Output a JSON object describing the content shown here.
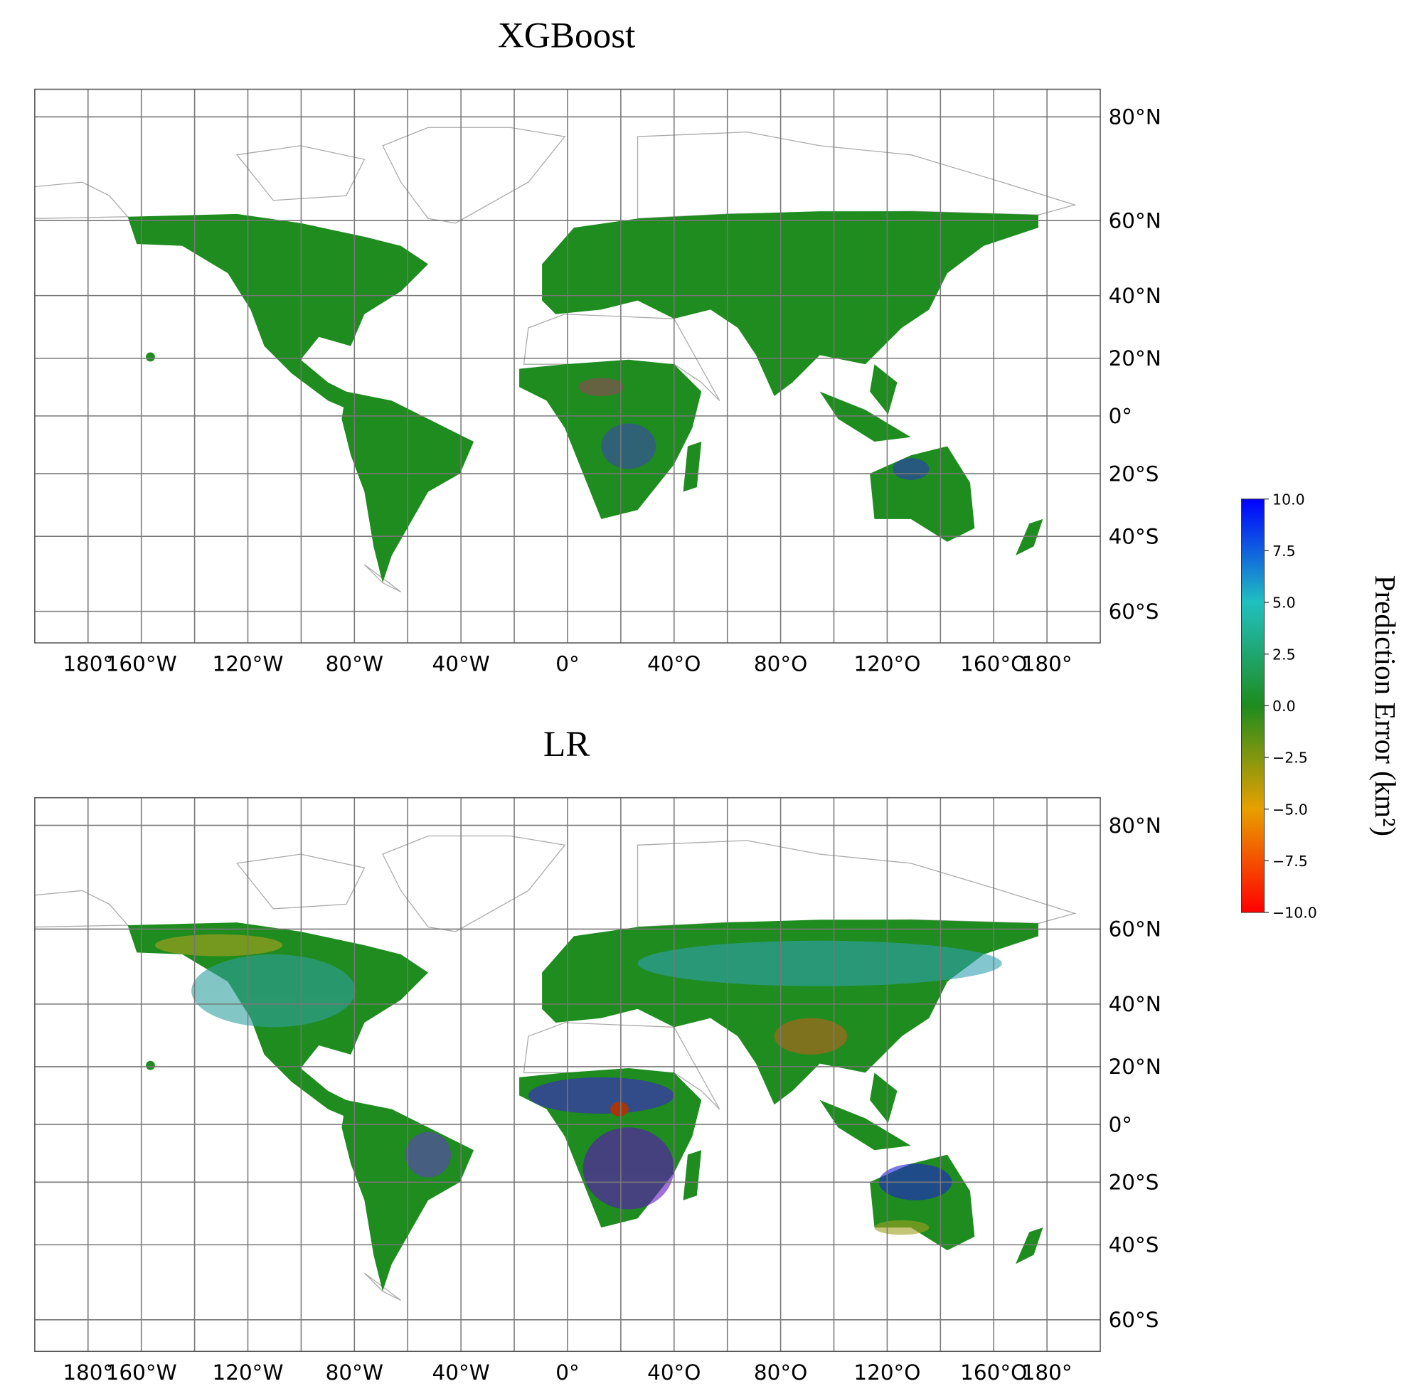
{
  "panels": [
    {
      "title": "XGBoost"
    },
    {
      "title": "LR"
    }
  ],
  "map": {
    "projection": "miller",
    "xlim": [
      -200,
      200
    ],
    "ylim": [
      -67,
      84
    ],
    "grid": true,
    "land_color": "#1e8c1e",
    "xgrid": [
      -180,
      -160,
      -140,
      -120,
      -100,
      -80,
      -60,
      -40,
      -20,
      0,
      20,
      40,
      60,
      80,
      100,
      120,
      140,
      160,
      180
    ],
    "xticks": [
      {
        "value": -180,
        "label": "180°"
      },
      {
        "value": -160,
        "label": "160°W"
      },
      {
        "value": -120,
        "label": "120°W"
      },
      {
        "value": -80,
        "label": "80°W"
      },
      {
        "value": -40,
        "label": "40°W"
      },
      {
        "value": 0,
        "label": "0°"
      },
      {
        "value": 40,
        "label": "40°O"
      },
      {
        "value": 80,
        "label": "80°O"
      },
      {
        "value": 120,
        "label": "120°O"
      },
      {
        "value": 160,
        "label": "160°O"
      },
      {
        "value": 180,
        "label": "180°"
      }
    ],
    "yticks": [
      {
        "value": 80,
        "label": "80°N"
      },
      {
        "value": 60,
        "label": "60°N"
      },
      {
        "value": 40,
        "label": "40°N"
      },
      {
        "value": 20,
        "label": "20°N"
      },
      {
        "value": 0,
        "label": "0°"
      },
      {
        "value": -20,
        "label": "20°S"
      },
      {
        "value": -40,
        "label": "40°S"
      },
      {
        "value": -60,
        "label": "60°S"
      }
    ]
  },
  "colorbar": {
    "label": "Prediction Error (km²)",
    "lim": [
      -10,
      10
    ],
    "colors": [
      "#ff0000",
      "#e8a000",
      "#1e8c1e",
      "#20c0c0",
      "#0000ff"
    ],
    "ticks": [
      {
        "value": 10,
        "label": "10.0"
      },
      {
        "value": 7.5,
        "label": "7.5"
      },
      {
        "value": 5,
        "label": "5.0"
      },
      {
        "value": 2.5,
        "label": "2.5"
      },
      {
        "value": 0,
        "label": "0.0"
      },
      {
        "value": -2.5,
        "label": "−2.5"
      },
      {
        "value": -5,
        "label": "−5.0"
      },
      {
        "value": -7.5,
        "label": "−7.5"
      },
      {
        "value": -10,
        "label": "−10.0"
      }
    ]
  }
}
